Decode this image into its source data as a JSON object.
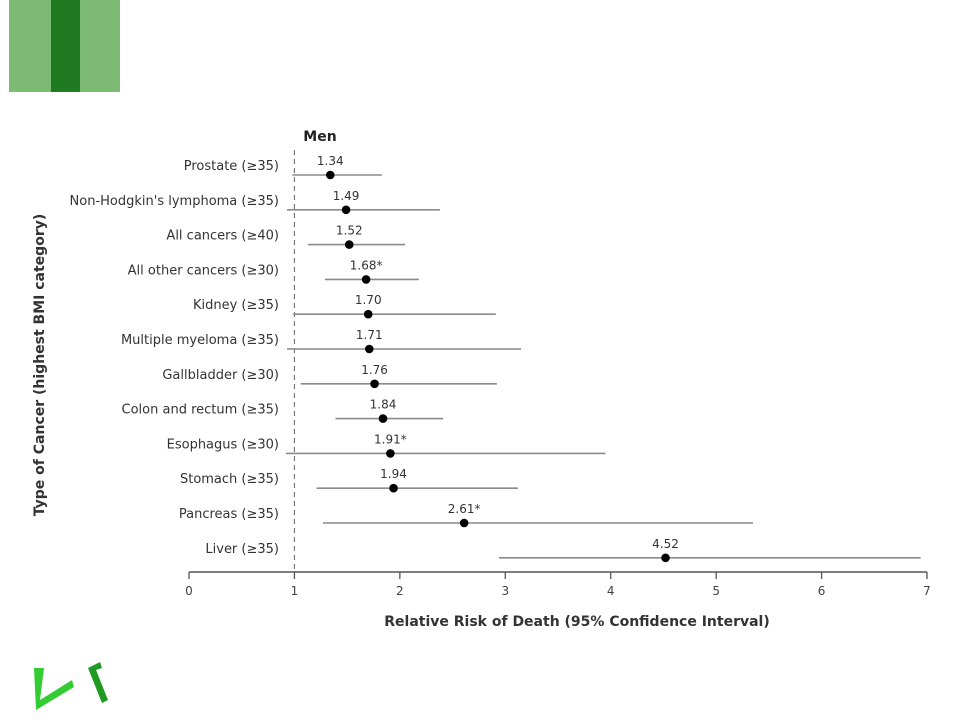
{
  "colors": {
    "accent_light": "#7dbb74",
    "accent_dark": "#1f7a22",
    "bright_green": "#33cc33",
    "interval_line": "#8a8a8a",
    "point": "#000000",
    "axis": "#555555",
    "label_text": "#333333"
  },
  "chart_data": {
    "type": "forest",
    "title": "Men",
    "xlabel": "Relative Risk of Death (95% Confidence Interval)",
    "ylabel": "Type of Cancer (highest BMI category)",
    "xlim": [
      0,
      7
    ],
    "xticks": [
      "0",
      "1",
      "2",
      "3",
      "4",
      "5",
      "6",
      "7"
    ],
    "reference_line": 1,
    "grid": false,
    "legend": "none",
    "rows": [
      {
        "label": "Prostate (≥35)",
        "estimate": 1.34,
        "display": "1.34",
        "ci_low": 0.98,
        "ci_high": 1.83
      },
      {
        "label": "Non-Hodgkin's lymphoma (≥35)",
        "estimate": 1.49,
        "display": "1.49",
        "ci_low": 0.93,
        "ci_high": 2.38
      },
      {
        "label": "All cancers (≥40)",
        "estimate": 1.52,
        "display": "1.52",
        "ci_low": 1.13,
        "ci_high": 2.05
      },
      {
        "label": "All other cancers (≥30)",
        "estimate": 1.68,
        "display": "1.68*",
        "ci_low": 1.29,
        "ci_high": 2.18
      },
      {
        "label": "Kidney (≥35)",
        "estimate": 1.7,
        "display": "1.70",
        "ci_low": 0.99,
        "ci_high": 2.91
      },
      {
        "label": "Multiple myeloma (≥35)",
        "estimate": 1.71,
        "display": "1.71",
        "ci_low": 0.93,
        "ci_high": 3.15
      },
      {
        "label": "Gallbladder (≥30)",
        "estimate": 1.76,
        "display": "1.76",
        "ci_low": 1.06,
        "ci_high": 2.92
      },
      {
        "label": "Colon and rectum (≥35)",
        "estimate": 1.84,
        "display": "1.84",
        "ci_low": 1.39,
        "ci_high": 2.41
      },
      {
        "label": "Esophagus (≥30)",
        "estimate": 1.91,
        "display": "1.91*",
        "ci_low": 0.92,
        "ci_high": 3.95
      },
      {
        "label": "Stomach (≥35)",
        "estimate": 1.94,
        "display": "1.94",
        "ci_low": 1.21,
        "ci_high": 3.12
      },
      {
        "label": "Pancreas (≥35)",
        "estimate": 2.61,
        "display": "2.61*",
        "ci_low": 1.27,
        "ci_high": 5.35
      },
      {
        "label": "Liver (≥35)",
        "estimate": 4.52,
        "display": "4.52",
        "ci_low": 2.94,
        "ci_high": 6.94
      }
    ]
  }
}
